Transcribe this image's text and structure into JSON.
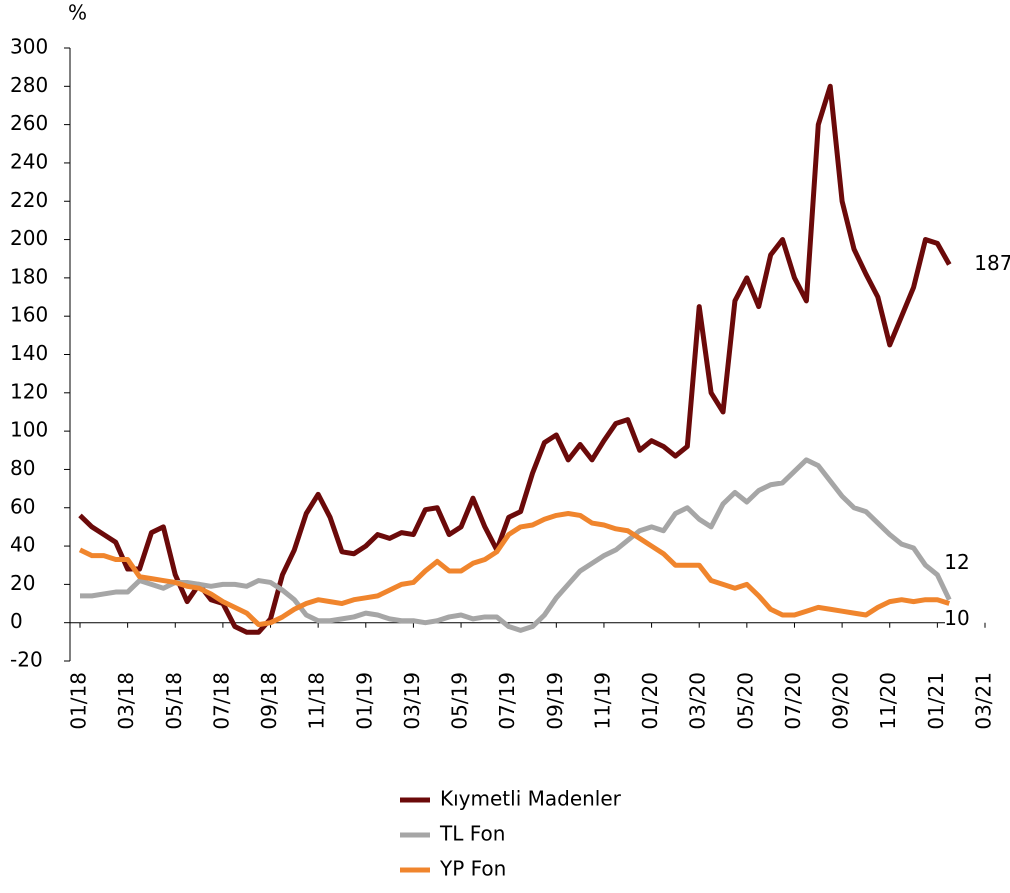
{
  "chart_data": {
    "type": "line",
    "y_axis_label": "%",
    "x": [
      0,
      0.5,
      1,
      1.5,
      2,
      2.5,
      3,
      3.5,
      4,
      4.5,
      5,
      5.5,
      6,
      6.5,
      7,
      7.5,
      8,
      8.5,
      9,
      9.5,
      10,
      10.5,
      11,
      11.5,
      12,
      12.5,
      13,
      13.5,
      14,
      14.5,
      15,
      15.5,
      16,
      16.5,
      17,
      17.5,
      18,
      18.5,
      19,
      19.5,
      20,
      20.5,
      21,
      21.5,
      22,
      22.5,
      23,
      23.5,
      24,
      24.5,
      25,
      25.5,
      26,
      26.5,
      27,
      27.5,
      28,
      28.5,
      29,
      29.5,
      30,
      30.5,
      31,
      31.5,
      32,
      32.5,
      33,
      33.5,
      34,
      34.5,
      35,
      35.5,
      36,
      36.5
    ],
    "xlim": [
      0,
      38
    ],
    "xticks": [
      {
        "value": 0,
        "label": "01/18"
      },
      {
        "value": 2,
        "label": "03/18"
      },
      {
        "value": 4,
        "label": "05/18"
      },
      {
        "value": 6,
        "label": "07/18"
      },
      {
        "value": 8,
        "label": "09/18"
      },
      {
        "value": 10,
        "label": "11/18"
      },
      {
        "value": 12,
        "label": "01/19"
      },
      {
        "value": 14,
        "label": "03/19"
      },
      {
        "value": 16,
        "label": "05/19"
      },
      {
        "value": 18,
        "label": "07/19"
      },
      {
        "value": 20,
        "label": "09/19"
      },
      {
        "value": 22,
        "label": "11/19"
      },
      {
        "value": 24,
        "label": "01/20"
      },
      {
        "value": 26,
        "label": "03/20"
      },
      {
        "value": 28,
        "label": "05/20"
      },
      {
        "value": 30,
        "label": "07/20"
      },
      {
        "value": 32,
        "label": "09/20"
      },
      {
        "value": 34,
        "label": "11/20"
      },
      {
        "value": 36,
        "label": "01/21"
      },
      {
        "value": 38,
        "label": "03/21"
      }
    ],
    "ylim": [
      -20,
      300
    ],
    "yticks": [
      -20,
      0,
      20,
      40,
      60,
      80,
      100,
      120,
      140,
      160,
      180,
      200,
      220,
      240,
      260,
      280,
      300
    ],
    "end_labels": true,
    "series": [
      {
        "name": "Kıymetli Madenler",
        "color": "#6b0a0a",
        "values": [
          56,
          50,
          46,
          42,
          28,
          28,
          47,
          50,
          25,
          11,
          20,
          12,
          10,
          -2,
          -5,
          -5,
          2,
          25,
          38,
          57,
          67,
          55,
          37,
          36,
          40,
          46,
          44,
          47,
          46,
          59,
          60,
          46,
          50,
          65,
          50,
          38,
          55,
          58,
          78,
          94,
          98,
          85,
          93,
          85,
          95,
          104,
          106,
          90,
          95,
          92,
          87,
          92,
          165,
          120,
          110,
          168,
          180,
          165,
          192,
          200,
          180,
          168,
          260,
          280,
          220,
          195,
          182,
          170,
          145,
          160,
          175,
          200,
          198,
          187
        ]
      },
      {
        "name": "TL Fon",
        "color": "#a6a6a6",
        "values": [
          14,
          14,
          15,
          16,
          16,
          22,
          20,
          18,
          21,
          21,
          20,
          19,
          20,
          20,
          19,
          22,
          21,
          17,
          12,
          4,
          1,
          1,
          2,
          3,
          5,
          4,
          2,
          1,
          1,
          0,
          1,
          3,
          4,
          2,
          3,
          3,
          -2,
          -4,
          -2,
          4,
          13,
          20,
          27,
          31,
          35,
          38,
          43,
          48,
          50,
          48,
          57,
          60,
          54,
          50,
          62,
          68,
          63,
          69,
          72,
          73,
          79,
          85,
          82,
          74,
          66,
          60,
          58,
          52,
          46,
          41,
          39,
          30,
          25,
          12
        ]
      },
      {
        "name": "YP Fon",
        "color": "#f0852d",
        "values": [
          38,
          35,
          35,
          33,
          33,
          24,
          23,
          22,
          21,
          19,
          18,
          15,
          11,
          8,
          5,
          -1,
          0,
          3,
          7,
          10,
          12,
          11,
          10,
          12,
          13,
          14,
          17,
          20,
          21,
          27,
          32,
          27,
          27,
          31,
          33,
          37,
          46,
          50,
          51,
          54,
          56,
          57,
          56,
          52,
          51,
          49,
          48,
          44,
          40,
          36,
          30,
          30,
          30,
          22,
          20,
          18,
          20,
          14,
          7,
          4,
          4,
          6,
          8,
          7,
          6,
          5,
          4,
          8,
          11,
          12,
          11,
          12,
          12,
          10
        ]
      }
    ]
  }
}
